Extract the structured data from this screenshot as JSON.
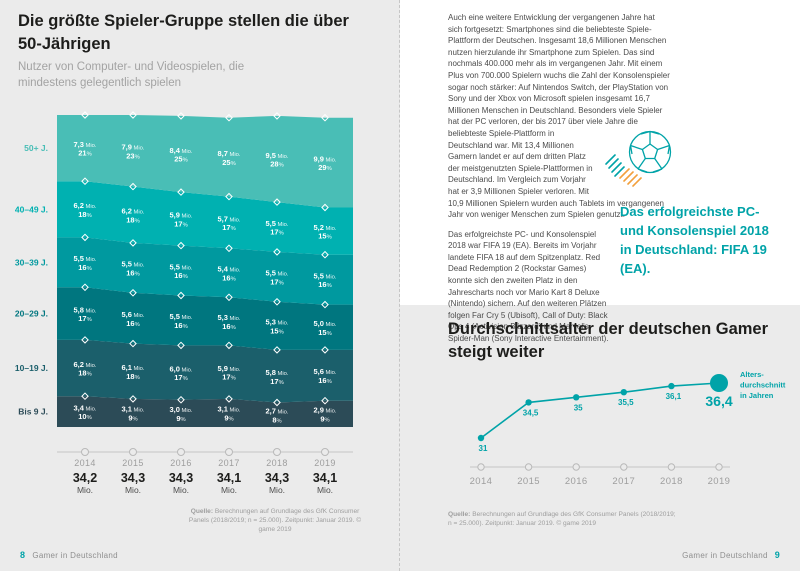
{
  "accent_color": "#00a3a8",
  "orange_color": "#f2a03d",
  "left_page": {
    "source_label": "Quelle:",
    "source_text": "Berechnungen auf Grundlage des GfK Consumer Panels (2018/2019; n = 25.000). Zeitpunkt: Januar 2019. © game 2019",
    "footer": {
      "page_number": "8",
      "label": "Gamer in Deutschland"
    }
  },
  "right_page": {
    "paragraph1": "Auch eine weitere Entwicklung der vergangenen Jahre hat sich fortgesetzt: Smartphones sind die beliebteste Spiele-Plattform der Deutschen. Insgesamt 18,6 Millionen Menschen nutzen hierzulande ihr Smartphone zum Spielen. Das sind nochmals 400.000 mehr als im vergangenen Jahr. Mit einem Plus von 700.000 Spielern wuchs die Zahl der Konsolenspieler sogar noch stärker: Auf Nintendos Switch, der PlayStation von Sony und der Xbox von Microsoft spielen insgesamt 16,7 Millionen Menschen in Deutschland. Besonders viele Spieler hat der PC verloren, der bis 2017 über viele Jahre die beliebteste Spiele-Plattform in Deutschland war. Mit 13,4 Millionen Gamern landet er auf dem dritten Platz der meistgenutzten Spiele-Plattformen in Deutschland. Im Vergleich zum Vorjahr hat er 3,9 Millionen Spieler verloren. Mit 10,9 Millionen Spielern wurden auch Tablets im vergangenen Jahr von weniger Menschen zum Spielen genutzt.",
    "paragraph2": "Das erfolgreichste PC- und Konsolenspiel 2018 war FIFA 19 (EA). Bereits im Vorjahr landete FIFA 18 auf dem Spitzenplatz. Red Dead Redemption 2 (Rockstar Games) konnte sich den zweiten Platz in den Jahrescharts noch vor Mario Kart 8 Deluxe (Nintendo) sichern. Auf den weiteren Plätzen folgen Far Cry 5 (Ubisoft), Call of Duty: Black Ops 4 (Activision Blizzard) und Marvel's Spider-Man (Sony Interactive Entertainment).",
    "callout": "Das erfolgreichste PC- und Konsolenspiel 2018 in Deutschland: FIFA 19 (EA).",
    "source_label": "Quelle:",
    "source_text": "Berechnungen auf Grundlage des GfK Consumer Panels (2018/2019; n = 25.000). Zeitpunkt: Januar 2019. © game 2019",
    "footer": {
      "page_number": "9",
      "label": "Gamer in Deutschland"
    }
  },
  "chart_data": [
    {
      "type": "area",
      "title": "Die größte Spieler-Gruppe stellen die über 50-Jährigen",
      "subtitle": "Nutzer von Computer- und Videospielen, die mindestens gelegentlich spielen",
      "categories": [
        "2014",
        "2015",
        "2016",
        "2017",
        "2018",
        "2019"
      ],
      "unit_label": "Mio.",
      "percent_label": "%",
      "totals": [
        34.2,
        34.3,
        34.3,
        34.1,
        34.3,
        34.1
      ],
      "totals_unit": "Mio.",
      "legend_position": "left",
      "series": [
        {
          "name": "50+ J.",
          "color": "#49beb6",
          "values_mio": [
            7.3,
            7.9,
            8.4,
            8.7,
            9.5,
            9.9
          ],
          "percent": [
            21,
            23,
            25,
            25,
            28,
            29
          ]
        },
        {
          "name": "40–49 J.",
          "color": "#00b1b1",
          "values_mio": [
            6.2,
            6.2,
            5.9,
            5.7,
            5.5,
            5.2
          ],
          "percent": [
            18,
            18,
            17,
            17,
            17,
            15
          ]
        },
        {
          "name": "30–39 J.",
          "color": "#00999f",
          "values_mio": [
            5.5,
            5.5,
            5.5,
            5.4,
            5.5,
            5.5
          ],
          "percent": [
            16,
            16,
            16,
            16,
            17,
            16
          ]
        },
        {
          "name": "20–29 J.",
          "color": "#00767f",
          "values_mio": [
            5.8,
            5.6,
            5.5,
            5.3,
            5.3,
            5.0
          ],
          "percent": [
            17,
            16,
            16,
            16,
            15,
            15
          ]
        },
        {
          "name": "10–19 J.",
          "color": "#1b5f6b",
          "values_mio": [
            6.2,
            6.1,
            6.0,
            5.9,
            5.8,
            5.6
          ],
          "percent": [
            18,
            18,
            17,
            17,
            17,
            16
          ]
        },
        {
          "name": "Bis 9 J.",
          "color": "#2c4b57",
          "values_mio": [
            3.4,
            3.1,
            3.0,
            3.1,
            2.7,
            2.9
          ],
          "percent": [
            10,
            9,
            9,
            9,
            8,
            9
          ]
        }
      ]
    },
    {
      "type": "line",
      "title": "Durchschnittsalter der deutschen Gamer steigt weiter",
      "categories": [
        "2014",
        "2015",
        "2016",
        "2017",
        "2018",
        "2019"
      ],
      "values": [
        31,
        34.5,
        35,
        35.5,
        36.1,
        36.4
      ],
      "labels": [
        "31",
        "34,5",
        "35",
        "35,5",
        "36,1",
        "36,4"
      ],
      "legend_lines": [
        "Alters-",
        "durchschnitt",
        "in Jahren"
      ],
      "color": "#00a3a8",
      "grid": false
    }
  ]
}
